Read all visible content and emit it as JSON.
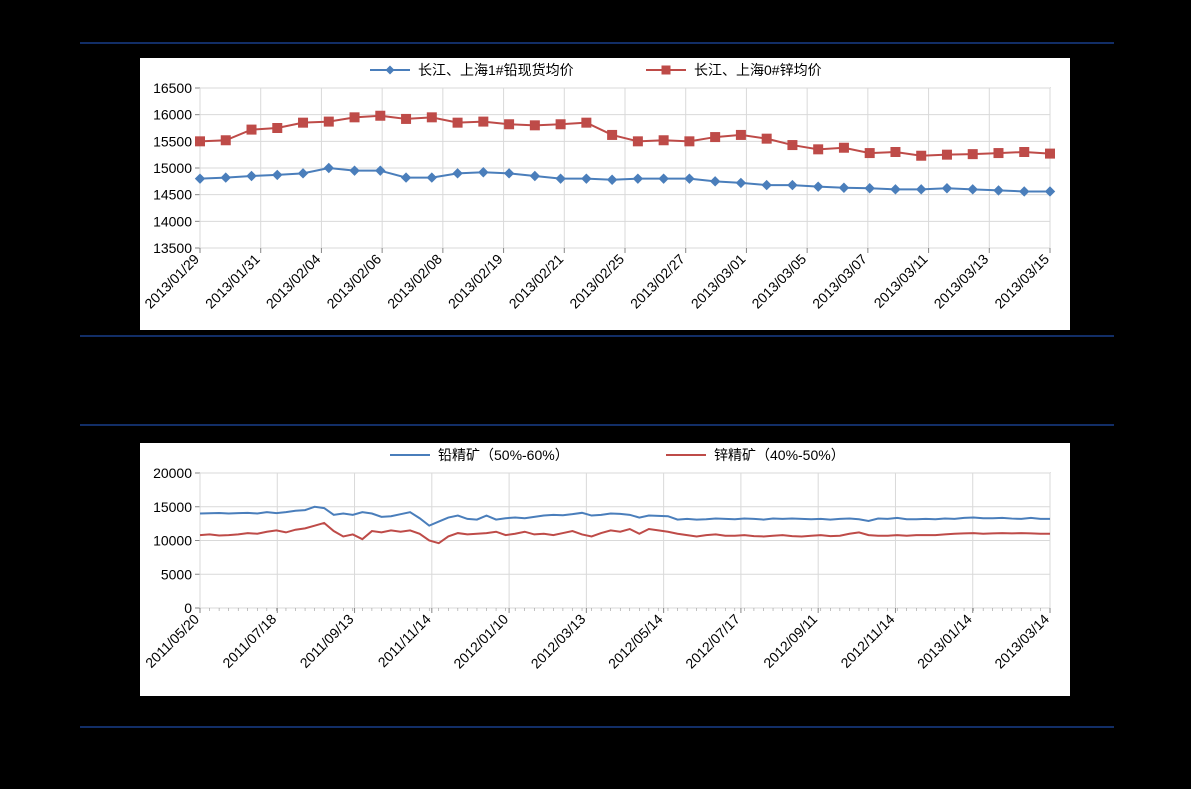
{
  "chart1": {
    "type": "line",
    "title": "",
    "series": [
      {
        "name": "长江、上海1#铅现货均价",
        "color": "#4a7ebb",
        "marker": "diamond",
        "marker_size": 9,
        "line_width": 2,
        "values": [
          14800,
          14820,
          14850,
          14870,
          14900,
          15000,
          14950,
          14950,
          14820,
          14820,
          14900,
          14920,
          14900,
          14850,
          14800,
          14800,
          14780,
          14800,
          14800,
          14800,
          14750,
          14720,
          14680,
          14680,
          14650,
          14630,
          14620,
          14600,
          14600,
          14620,
          14600,
          14580,
          14560,
          14560
        ]
      },
      {
        "name": "长江、上海0#锌均价",
        "color": "#be4b48",
        "marker": "square",
        "marker_size": 9,
        "line_width": 2,
        "values": [
          15500,
          15520,
          15720,
          15750,
          15850,
          15870,
          15950,
          15980,
          15920,
          15950,
          15850,
          15870,
          15820,
          15800,
          15820,
          15850,
          15620,
          15500,
          15520,
          15500,
          15580,
          15620,
          15550,
          15430,
          15350,
          15380,
          15280,
          15300,
          15230,
          15250,
          15260,
          15280,
          15300,
          15270
        ]
      }
    ],
    "x_labels": [
      "2013/01/29",
      "2013/01/31",
      "2013/02/04",
      "2013/02/06",
      "2013/02/08",
      "2013/02/19",
      "2013/02/21",
      "2013/02/25",
      "2013/02/27",
      "2013/03/01",
      "2013/03/05",
      "2013/03/07",
      "2013/03/11",
      "2013/03/13",
      "2013/03/15"
    ],
    "y": {
      "min": 13500,
      "max": 16500,
      "step": 500
    },
    "plot_bg": "#ffffff",
    "grid_color": "#d9d9d9",
    "axis_color": "#868686",
    "tick_font_size": 14,
    "legend_font_size": 14,
    "x_label_rotation": -45
  },
  "chart2": {
    "type": "line",
    "title": "",
    "series": [
      {
        "name": "铅精矿（50%-60%）",
        "color": "#4a7ebb",
        "marker": "none",
        "line_width": 2,
        "values": [
          14000,
          14040,
          14080,
          14000,
          14050,
          14100,
          14000,
          14200,
          14050,
          14200,
          14400,
          14500,
          15000,
          14800,
          13800,
          14000,
          13800,
          14200,
          14000,
          13500,
          13600,
          13900,
          14200,
          13300,
          12200,
          12800,
          13400,
          13700,
          13200,
          13100,
          13700,
          13100,
          13300,
          13400,
          13300,
          13500,
          13700,
          13800,
          13750,
          13900,
          14100,
          13700,
          13800,
          14000,
          13950,
          13800,
          13400,
          13700,
          13650,
          13600,
          13100,
          13200,
          13100,
          13150,
          13250,
          13200,
          13150,
          13250,
          13200,
          13100,
          13250,
          13200,
          13250,
          13200,
          13150,
          13200,
          13100,
          13200,
          13250,
          13150,
          12900,
          13250,
          13200,
          13350,
          13150,
          13150,
          13200,
          13150,
          13250,
          13200,
          13350,
          13400,
          13300,
          13300,
          13350,
          13250,
          13200,
          13350,
          13200,
          13200
        ]
      },
      {
        "name": "锌精矿（40%-50%）",
        "color": "#be4b48",
        "marker": "none",
        "line_width": 2,
        "values": [
          10800,
          10900,
          10750,
          10800,
          10900,
          11100,
          11000,
          11300,
          11500,
          11200,
          11600,
          11800,
          12200,
          12600,
          11400,
          10600,
          10900,
          10200,
          11400,
          11200,
          11500,
          11300,
          11500,
          11000,
          10000,
          9600,
          10600,
          11100,
          10900,
          11000,
          11100,
          11300,
          10800,
          11000,
          11300,
          10900,
          11000,
          10800,
          11100,
          11400,
          10900,
          10600,
          11100,
          11500,
          11300,
          11700,
          11000,
          11700,
          11500,
          11300,
          11000,
          10800,
          10600,
          10800,
          10900,
          10700,
          10700,
          10800,
          10650,
          10600,
          10700,
          10800,
          10650,
          10600,
          10700,
          10800,
          10650,
          10700,
          11000,
          11200,
          10800,
          10700,
          10700,
          10800,
          10700,
          10800,
          10800,
          10800,
          10900,
          11000,
          11050,
          11100,
          11000,
          11050,
          11100,
          11050,
          11100,
          11050,
          11000,
          11000
        ]
      }
    ],
    "x_labels": [
      "2011/05/20",
      "2011/07/18",
      "2011/09/13",
      "2011/11/14",
      "2012/01/10",
      "2012/03/13",
      "2012/05/14",
      "2012/07/17",
      "2012/09/11",
      "2012/11/14",
      "2013/01/14",
      "2013/03/14"
    ],
    "y": {
      "min": 0,
      "max": 20000,
      "step": 5000
    },
    "plot_bg": "#ffffff",
    "grid_color": "#d9d9d9",
    "axis_color": "#868686",
    "tick_font_size": 14,
    "legend_font_size": 14,
    "x_label_rotation": -45
  },
  "layout": {
    "bg": "#000000",
    "hr_color": "#122e67",
    "panel_bg": "#ffffff"
  }
}
